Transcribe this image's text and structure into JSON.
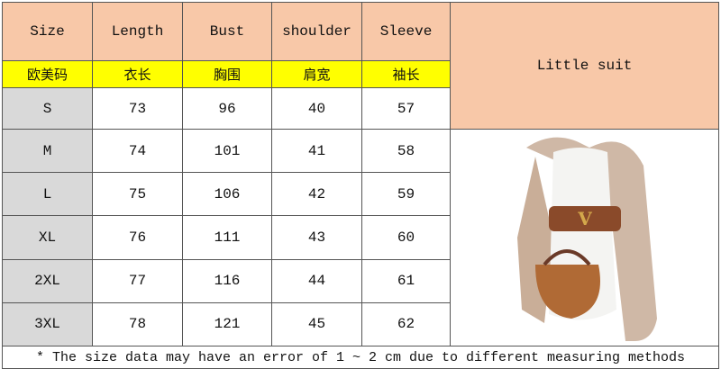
{
  "table": {
    "headers": [
      "Size",
      "Length",
      "Bust",
      "shoulder",
      "Sleeve"
    ],
    "headers_zh": [
      "欧美码",
      "衣长",
      "胸围",
      "肩宽",
      "袖长"
    ],
    "rows": [
      [
        "S",
        "73",
        "96",
        "40",
        "57"
      ],
      [
        "M",
        "74",
        "101",
        "41",
        "58"
      ],
      [
        "L",
        "75",
        "106",
        "42",
        "59"
      ],
      [
        "XL",
        "76",
        "111",
        "43",
        "60"
      ],
      [
        "2XL",
        "77",
        "116",
        "44",
        "61"
      ],
      [
        "3XL",
        "78",
        "121",
        "45",
        "62"
      ]
    ]
  },
  "product": {
    "title": "Little suit",
    "image": "woman-wearing-beige-blazer-white-dress-photo"
  },
  "footnote": "* The size data may have an error of 1 ~ 2 cm due to different measuring methods",
  "colors": {
    "header": "#f8c8a8",
    "zh_header": "#ffff00",
    "size_col": "#d9d9d9"
  }
}
